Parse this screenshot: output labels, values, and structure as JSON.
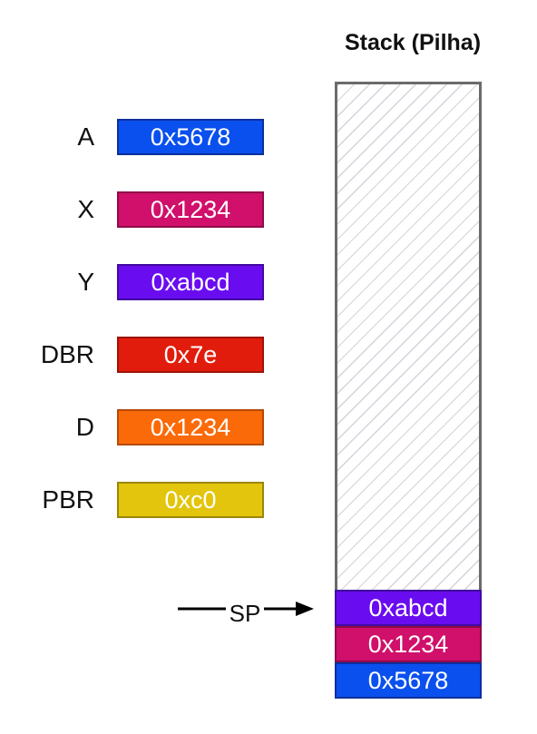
{
  "registers": [
    {
      "name": "A",
      "value": "0x5678",
      "fill": "#0a50ee",
      "border": "#0d2f9c"
    },
    {
      "name": "X",
      "value": "0x1234",
      "fill": "#d0106a",
      "border": "#8f0a49"
    },
    {
      "name": "Y",
      "value": "0xabcd",
      "fill": "#6a0cf0",
      "border": "#4209a0"
    },
    {
      "name": "DBR",
      "value": "0x7e",
      "fill": "#e21c0c",
      "border": "#9e1208"
    },
    {
      "name": "D",
      "value": "0x1234",
      "fill": "#fb6a08",
      "border": "#b54a06"
    },
    {
      "name": "PBR",
      "value": "0xc0",
      "fill": "#e2c50c",
      "border": "#9c8608"
    }
  ],
  "stack": {
    "title": "Stack (Pilha)",
    "frame_border": "#6b6b6b",
    "hatch_color": "#d3d3dc",
    "cells": [
      {
        "value": "0xabcd",
        "fill": "#6a0cf0",
        "border": "#4209a0"
      },
      {
        "value": "0x1234",
        "fill": "#d0106a",
        "border": "#8f0a49"
      },
      {
        "value": "0x5678",
        "fill": "#0a50ee",
        "border": "#0d2f9c"
      }
    ]
  },
  "pointer": {
    "label": "SP"
  }
}
